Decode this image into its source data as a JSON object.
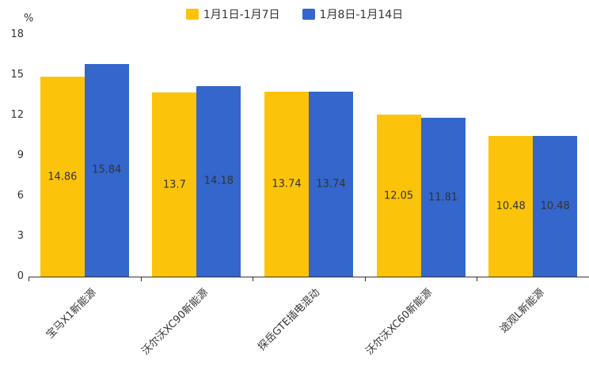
{
  "unit_label": "%",
  "legend": [
    {
      "label": "1月1日-1月7日",
      "color": "#FCC30B"
    },
    {
      "label": "1月8日-1月14日",
      "color": "#3466CB"
    }
  ],
  "chart_data": {
    "type": "bar",
    "title": "",
    "xlabel": "",
    "ylabel": "%",
    "ylim": [
      0,
      18
    ],
    "y_ticks": [
      0,
      3,
      6,
      9,
      12,
      15,
      18
    ],
    "grid": false,
    "legend_position": "top",
    "categories": [
      "宝马X1新能源",
      "沃尔沃XC90新能源",
      "探岳GTE插电混动",
      "沃尔沃XC60新能源",
      "途观L新能源"
    ],
    "series": [
      {
        "name": "1月1日-1月7日",
        "color": "#FCC30B",
        "values": [
          14.86,
          13.7,
          13.74,
          12.05,
          10.48
        ]
      },
      {
        "name": "1月8日-1月14日",
        "color": "#3466CB",
        "values": [
          15.84,
          14.18,
          13.74,
          11.81,
          10.48
        ]
      }
    ]
  }
}
